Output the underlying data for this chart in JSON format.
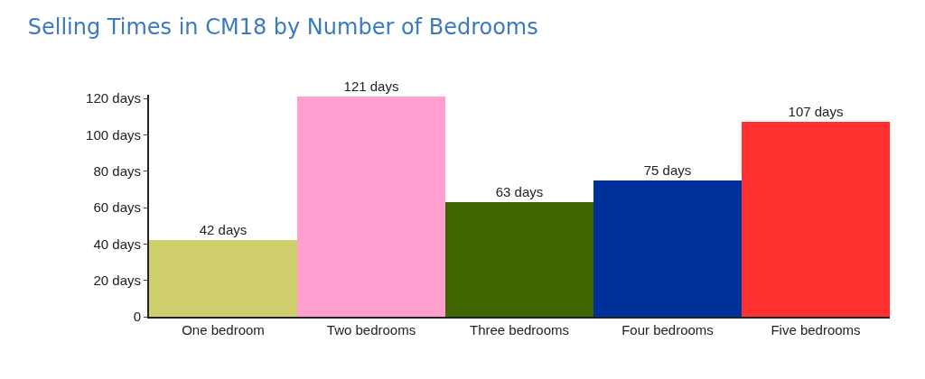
{
  "chart_data": {
    "type": "bar",
    "title": "Selling Times in CM18 by Number of Bedrooms",
    "categories": [
      "One bedroom",
      "Two bedrooms",
      "Three bedrooms",
      "Four bedrooms",
      "Five bedrooms"
    ],
    "values": [
      42,
      121,
      63,
      75,
      107
    ],
    "colors": [
      "#cfcf6e",
      "#ff9fcf",
      "#3f6600",
      "#00309a",
      "#ff3030"
    ],
    "value_labels": [
      "42 days",
      "121 days",
      "63 days",
      "75 days",
      "107 days"
    ],
    "ylim": [
      0,
      122
    ],
    "yticks": [
      {
        "value": 0,
        "label": "0"
      },
      {
        "value": 20,
        "label": "20 days"
      },
      {
        "value": 40,
        "label": "40 days"
      },
      {
        "value": 60,
        "label": "60 days"
      },
      {
        "value": 80,
        "label": "80 days"
      },
      {
        "value": 100,
        "label": "100 days"
      },
      {
        "value": 120,
        "label": "120 days"
      }
    ],
    "legend": false
  }
}
